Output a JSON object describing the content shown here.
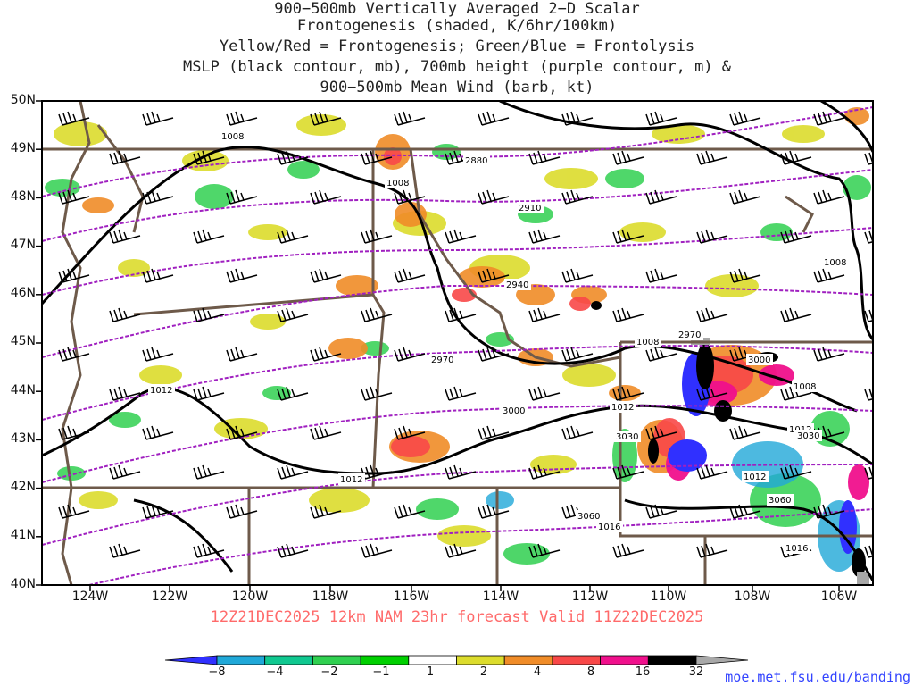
{
  "title_lines": [
    "900−500mb Vertically Averaged 2−D Scalar",
    "Frontogenesis (shaded, K/6hr/100km)",
    "Yellow/Red = Frontogenesis;  Green/Blue = Frontolysis",
    "MSLP (black contour, mb), 700mb height (purple contour, m) &",
    "900−500mb Mean Wind (barb, kt)"
  ],
  "map": {
    "lat_labels": [
      "50N",
      "49N",
      "48N",
      "47N",
      "46N",
      "45N",
      "44N",
      "43N",
      "42N",
      "41N",
      "40N"
    ],
    "lon_labels": [
      "124W",
      "122W",
      "120W",
      "118W",
      "116W",
      "114W",
      "112W",
      "110W",
      "108W",
      "106W"
    ],
    "mslp_labels": [
      "1008",
      "1008",
      "1008",
      "1008",
      "1008",
      "1012",
      "1012",
      "1012",
      "1012",
      "1012",
      "1016",
      "1016"
    ],
    "height_labels": [
      "2880",
      "2910",
      "2940",
      "2970",
      "2970",
      "3000",
      "3000",
      "3030",
      "3030",
      "3060",
      "3060"
    ],
    "colors": {
      "mslp_contour": "#000000",
      "height_contour": "#a020c0",
      "state_border": "#6e5a4a",
      "barb": "#000000"
    }
  },
  "forecast_label": "12Z21DEC2025 12km NAM 23hr forecast Valid 11Z22DEC2025",
  "colorbar": {
    "labels": [
      "−8",
      "−4",
      "−2",
      "−1",
      "1",
      "2",
      "4",
      "8",
      "16",
      "32"
    ],
    "colors": [
      "#3030ff",
      "#20a8d8",
      "#10c890",
      "#30d050",
      "#00d000",
      "#ffffff",
      "#dcdc2c",
      "#f08c28",
      "#f84848",
      "#f0108c",
      "#000000",
      "#a8a8a8"
    ]
  },
  "source_link": "moe.met.fsu.edu/banding"
}
